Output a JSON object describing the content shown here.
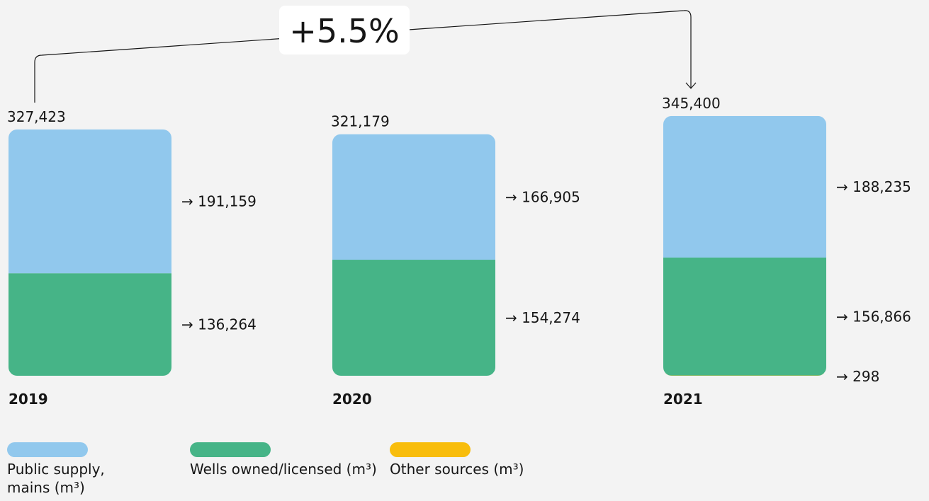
{
  "chart_data": {
    "type": "bar",
    "stacked": true,
    "categories": [
      "2019",
      "2020",
      "2021"
    ],
    "series": [
      {
        "name": "Public supply, mains (m³)",
        "color": "#91c8ed",
        "values": [
          191159,
          166905,
          188235
        ]
      },
      {
        "name": "Wells owned/licensed (m³)",
        "color": "#46b487",
        "values": [
          136264,
          154274,
          156866
        ]
      },
      {
        "name": "Other sources (m³)",
        "color": "#f8bd0c",
        "values": [
          0,
          0,
          298
        ]
      }
    ],
    "totals": [
      327423,
      321179,
      345400
    ],
    "segment_labels": [
      [
        "→ 191,159",
        "→ 136,264",
        ""
      ],
      [
        "→ 166,905",
        "→ 154,274",
        ""
      ],
      [
        "→ 188,235",
        "→ 156,866",
        "→ 298"
      ]
    ],
    "total_labels": [
      "327,423",
      "321,179",
      "345,400"
    ],
    "change_annotation": {
      "text": "+5.5%",
      "from": "2019",
      "to": "2021"
    },
    "legend_position": "bottom-left",
    "grid": false
  },
  "legend": [
    {
      "label": "Public supply, mains (m³)",
      "color": "#91c8ed"
    },
    {
      "label": "Wells owned/licensed (m³)",
      "color": "#46b487"
    },
    {
      "label": "Other sources (m³)",
      "color": "#f8bd0c"
    }
  ]
}
